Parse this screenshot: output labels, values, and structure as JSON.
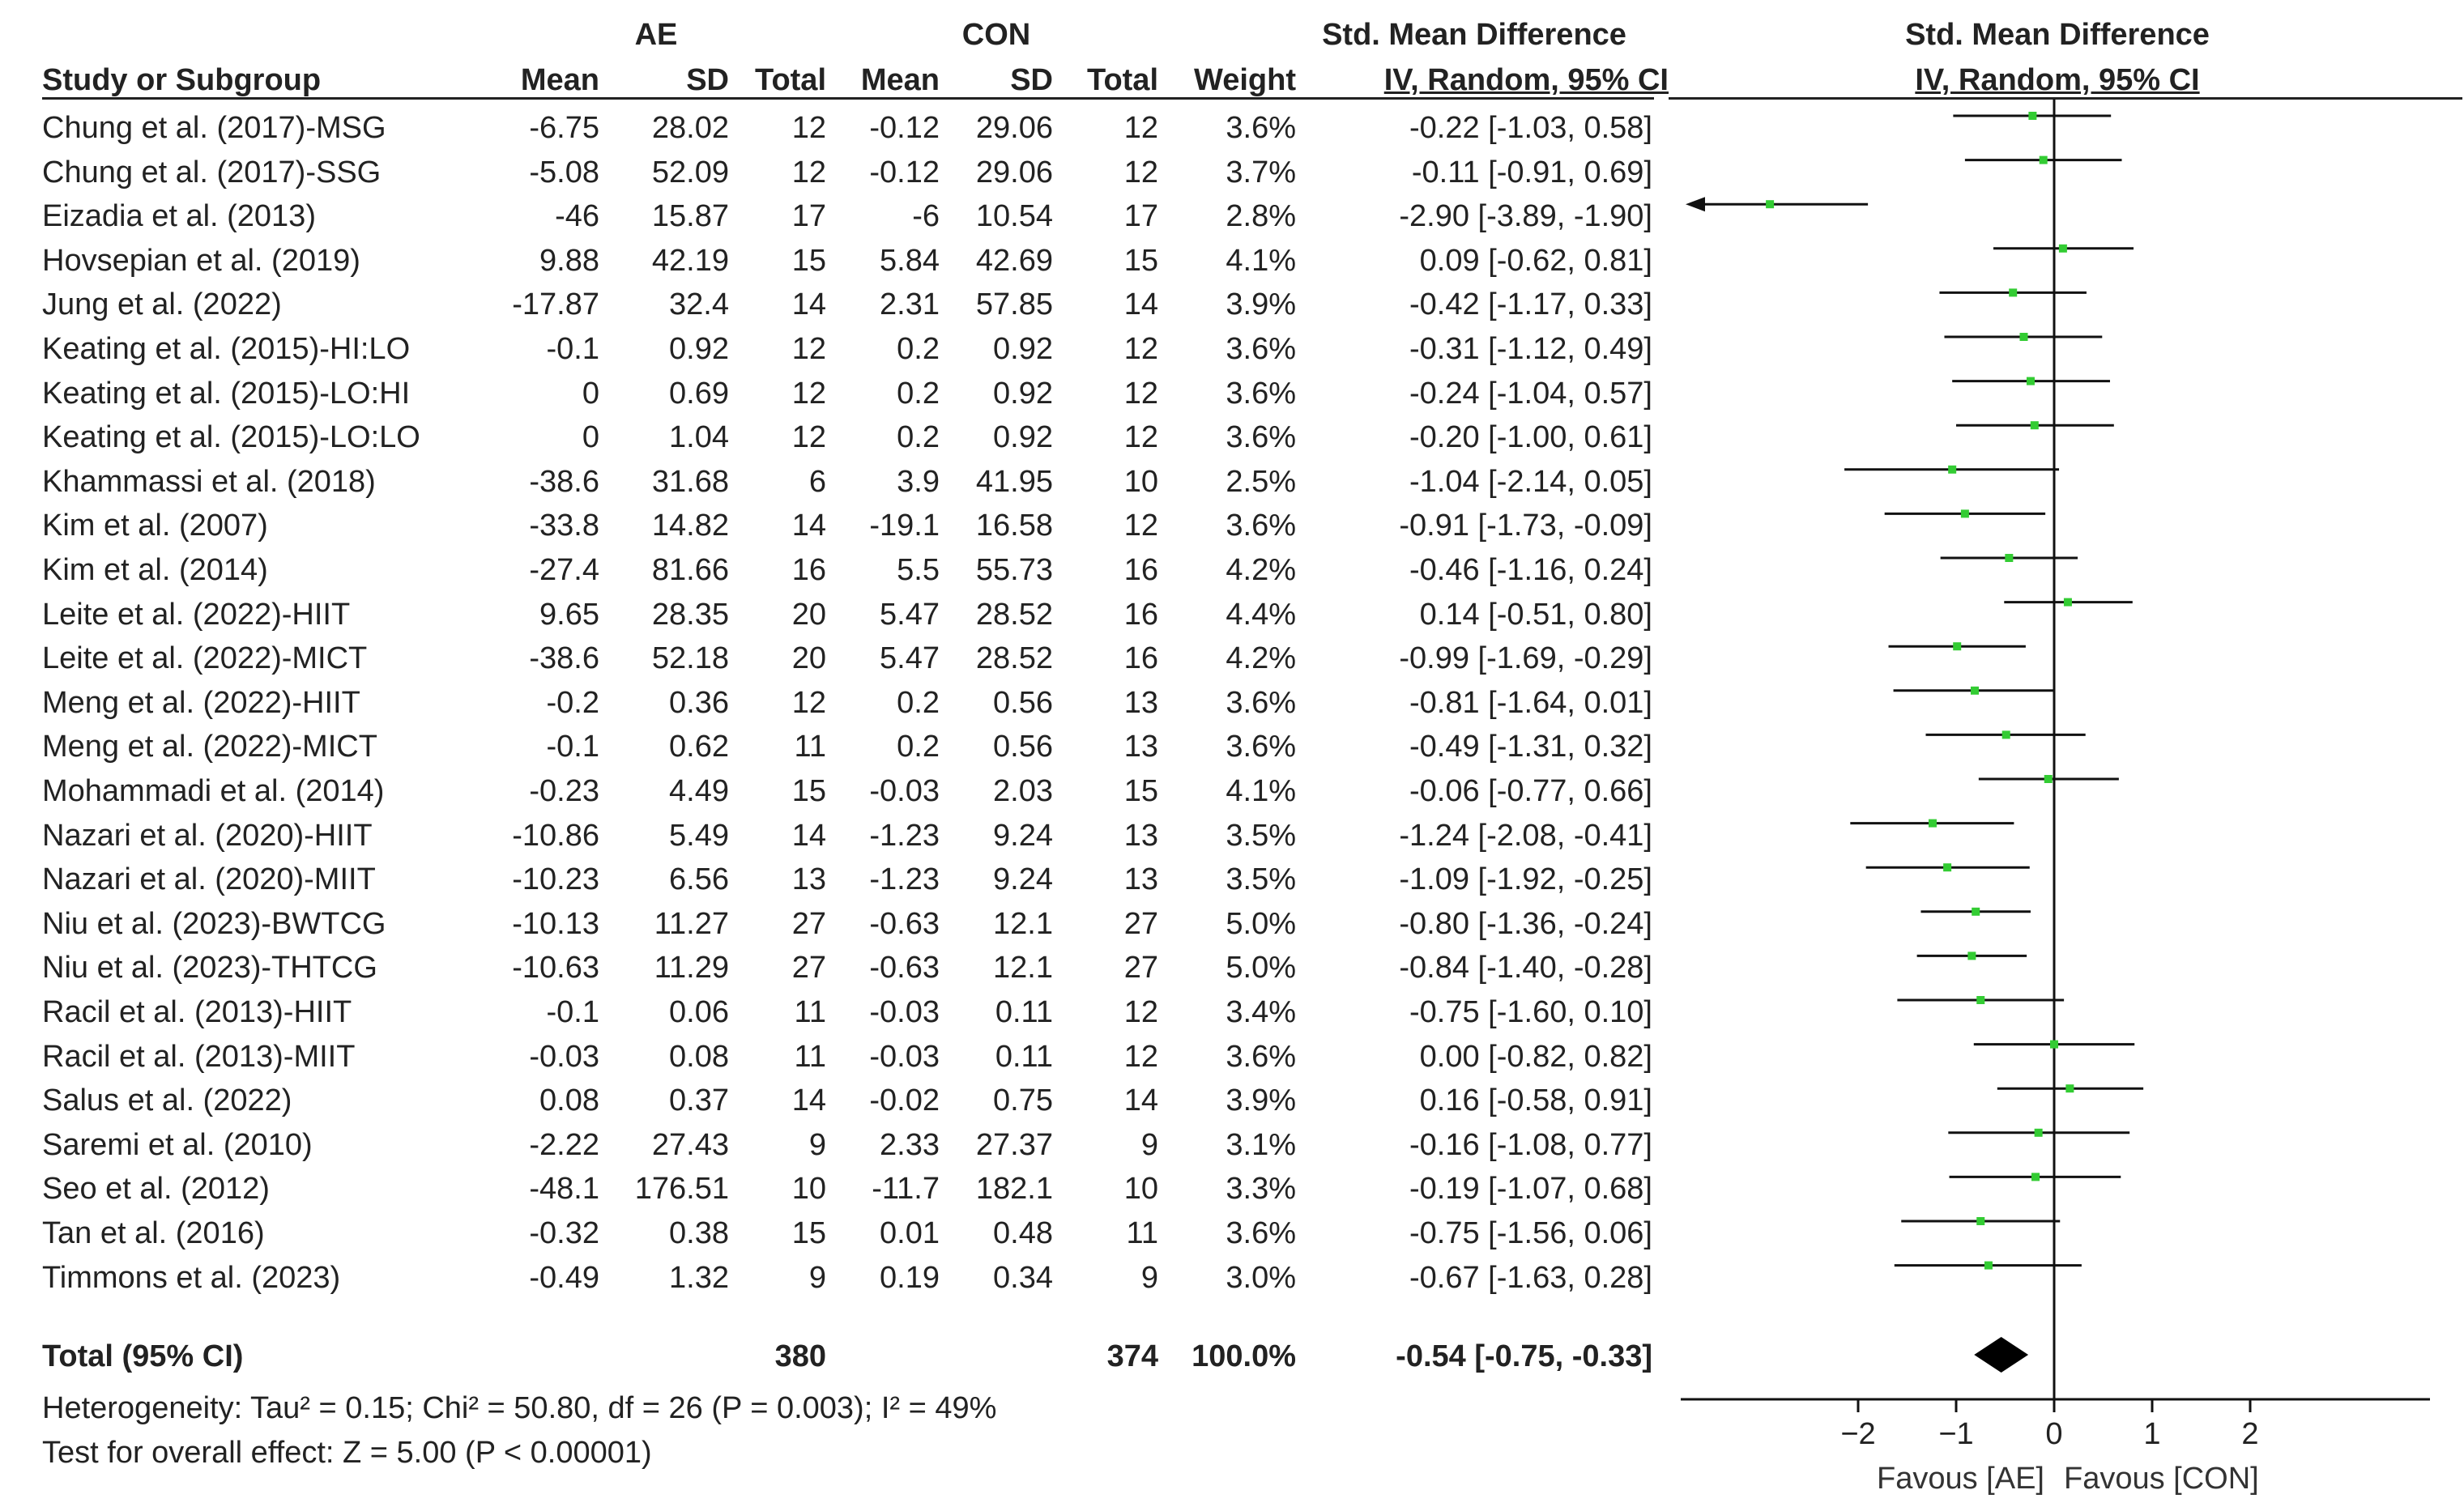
{
  "headers": {
    "group_ae": "AE",
    "group_con": "CON",
    "smd_title_table": "Std. Mean Difference",
    "smd_title_plot": "Std. Mean Difference",
    "study": "Study or Subgroup",
    "mean_ae": "Mean",
    "sd_ae": "SD",
    "total_ae": "Total",
    "mean_con": "Mean",
    "sd_con": "SD",
    "total_con": "Total",
    "weight": "Weight",
    "ci_table": "IV, Random, 95% CI",
    "ci_plot": "IV, Random, 95% CI"
  },
  "rows": [
    {
      "study": "Chung et al. (2017)-MSG",
      "ae_mean": "-6.75",
      "ae_sd": "28.02",
      "ae_total": "12",
      "con_mean": "-0.12",
      "con_sd": "29.06",
      "con_total": "12",
      "weight": "3.6%",
      "ci_text": "-0.22 [-1.03, 0.58]"
    },
    {
      "study": "Chung et al. (2017)-SSG",
      "ae_mean": "-5.08",
      "ae_sd": "52.09",
      "ae_total": "12",
      "con_mean": "-0.12",
      "con_sd": "29.06",
      "con_total": "12",
      "weight": "3.7%",
      "ci_text": "-0.11 [-0.91, 0.69]"
    },
    {
      "study": "Eizadia et al. (2013)",
      "ae_mean": "-46",
      "ae_sd": "15.87",
      "ae_total": "17",
      "con_mean": "-6",
      "con_sd": "10.54",
      "con_total": "17",
      "weight": "2.8%",
      "ci_text": "-2.90 [-3.89, -1.90]"
    },
    {
      "study": "Hovsepian et al. (2019)",
      "ae_mean": "9.88",
      "ae_sd": "42.19",
      "ae_total": "15",
      "con_mean": "5.84",
      "con_sd": "42.69",
      "con_total": "15",
      "weight": "4.1%",
      "ci_text": "0.09 [-0.62, 0.81]"
    },
    {
      "study": "Jung et al. (2022)",
      "ae_mean": "-17.87",
      "ae_sd": "32.4",
      "ae_total": "14",
      "con_mean": "2.31",
      "con_sd": "57.85",
      "con_total": "14",
      "weight": "3.9%",
      "ci_text": "-0.42 [-1.17, 0.33]"
    },
    {
      "study": "Keating et al. (2015)-HI:LO",
      "ae_mean": "-0.1",
      "ae_sd": "0.92",
      "ae_total": "12",
      "con_mean": "0.2",
      "con_sd": "0.92",
      "con_total": "12",
      "weight": "3.6%",
      "ci_text": "-0.31 [-1.12, 0.49]"
    },
    {
      "study": "Keating et al. (2015)-LO:HI",
      "ae_mean": "0",
      "ae_sd": "0.69",
      "ae_total": "12",
      "con_mean": "0.2",
      "con_sd": "0.92",
      "con_total": "12",
      "weight": "3.6%",
      "ci_text": "-0.24 [-1.04, 0.57]"
    },
    {
      "study": "Keating et al. (2015)-LO:LO",
      "ae_mean": "0",
      "ae_sd": "1.04",
      "ae_total": "12",
      "con_mean": "0.2",
      "con_sd": "0.92",
      "con_total": "12",
      "weight": "3.6%",
      "ci_text": "-0.20 [-1.00, 0.61]"
    },
    {
      "study": "Khammassi et al. (2018)",
      "ae_mean": "-38.6",
      "ae_sd": "31.68",
      "ae_total": "6",
      "con_mean": "3.9",
      "con_sd": "41.95",
      "con_total": "10",
      "weight": "2.5%",
      "ci_text": "-1.04 [-2.14, 0.05]"
    },
    {
      "study": "Kim et al. (2007)",
      "ae_mean": "-33.8",
      "ae_sd": "14.82",
      "ae_total": "14",
      "con_mean": "-19.1",
      "con_sd": "16.58",
      "con_total": "12",
      "weight": "3.6%",
      "ci_text": "-0.91 [-1.73, -0.09]"
    },
    {
      "study": "Kim et al. (2014)",
      "ae_mean": "-27.4",
      "ae_sd": "81.66",
      "ae_total": "16",
      "con_mean": "5.5",
      "con_sd": "55.73",
      "con_total": "16",
      "weight": "4.2%",
      "ci_text": "-0.46 [-1.16, 0.24]"
    },
    {
      "study": "Leite et al. (2022)-HIIT",
      "ae_mean": "9.65",
      "ae_sd": "28.35",
      "ae_total": "20",
      "con_mean": "5.47",
      "con_sd": "28.52",
      "con_total": "16",
      "weight": "4.4%",
      "ci_text": "0.14 [-0.51, 0.80]"
    },
    {
      "study": "Leite et al. (2022)-MICT",
      "ae_mean": "-38.6",
      "ae_sd": "52.18",
      "ae_total": "20",
      "con_mean": "5.47",
      "con_sd": "28.52",
      "con_total": "16",
      "weight": "4.2%",
      "ci_text": "-0.99 [-1.69, -0.29]"
    },
    {
      "study": "Meng et al. (2022)-HIIT",
      "ae_mean": "-0.2",
      "ae_sd": "0.36",
      "ae_total": "12",
      "con_mean": "0.2",
      "con_sd": "0.56",
      "con_total": "13",
      "weight": "3.6%",
      "ci_text": "-0.81 [-1.64, 0.01]"
    },
    {
      "study": "Meng et al. (2022)-MICT",
      "ae_mean": "-0.1",
      "ae_sd": "0.62",
      "ae_total": "11",
      "con_mean": "0.2",
      "con_sd": "0.56",
      "con_total": "13",
      "weight": "3.6%",
      "ci_text": "-0.49 [-1.31, 0.32]"
    },
    {
      "study": "Mohammadi et al. (2014)",
      "ae_mean": "-0.23",
      "ae_sd": "4.49",
      "ae_total": "15",
      "con_mean": "-0.03",
      "con_sd": "2.03",
      "con_total": "15",
      "weight": "4.1%",
      "ci_text": "-0.06 [-0.77, 0.66]"
    },
    {
      "study": "Nazari et al. (2020)-HIIT",
      "ae_mean": "-10.86",
      "ae_sd": "5.49",
      "ae_total": "14",
      "con_mean": "-1.23",
      "con_sd": "9.24",
      "con_total": "13",
      "weight": "3.5%",
      "ci_text": "-1.24 [-2.08, -0.41]"
    },
    {
      "study": "Nazari et al. (2020)-MIIT",
      "ae_mean": "-10.23",
      "ae_sd": "6.56",
      "ae_total": "13",
      "con_mean": "-1.23",
      "con_sd": "9.24",
      "con_total": "13",
      "weight": "3.5%",
      "ci_text": "-1.09 [-1.92, -0.25]"
    },
    {
      "study": "Niu et al. (2023)-BWTCG",
      "ae_mean": "-10.13",
      "ae_sd": "11.27",
      "ae_total": "27",
      "con_mean": "-0.63",
      "con_sd": "12.1",
      "con_total": "27",
      "weight": "5.0%",
      "ci_text": "-0.80 [-1.36, -0.24]"
    },
    {
      "study": "Niu et al. (2023)-THTCG",
      "ae_mean": "-10.63",
      "ae_sd": "11.29",
      "ae_total": "27",
      "con_mean": "-0.63",
      "con_sd": "12.1",
      "con_total": "27",
      "weight": "5.0%",
      "ci_text": "-0.84 [-1.40, -0.28]"
    },
    {
      "study": "Racil et al. (2013)-HIIT",
      "ae_mean": "-0.1",
      "ae_sd": "0.06",
      "ae_total": "11",
      "con_mean": "-0.03",
      "con_sd": "0.11",
      "con_total": "12",
      "weight": "3.4%",
      "ci_text": "-0.75 [-1.60, 0.10]"
    },
    {
      "study": "Racil et al. (2013)-MIIT",
      "ae_mean": "-0.03",
      "ae_sd": "0.08",
      "ae_total": "11",
      "con_mean": "-0.03",
      "con_sd": "0.11",
      "con_total": "12",
      "weight": "3.6%",
      "ci_text": "0.00 [-0.82, 0.82]"
    },
    {
      "study": "Salus et al. (2022)",
      "ae_mean": "0.08",
      "ae_sd": "0.37",
      "ae_total": "14",
      "con_mean": "-0.02",
      "con_sd": "0.75",
      "con_total": "14",
      "weight": "3.9%",
      "ci_text": "0.16 [-0.58, 0.91]"
    },
    {
      "study": "Saremi et al. (2010)",
      "ae_mean": "-2.22",
      "ae_sd": "27.43",
      "ae_total": "9",
      "con_mean": "2.33",
      "con_sd": "27.37",
      "con_total": "9",
      "weight": "3.1%",
      "ci_text": "-0.16 [-1.08, 0.77]"
    },
    {
      "study": "Seo et al. (2012)",
      "ae_mean": "-48.1",
      "ae_sd": "176.51",
      "ae_total": "10",
      "con_mean": "-11.7",
      "con_sd": "182.1",
      "con_total": "10",
      "weight": "3.3%",
      "ci_text": "-0.19 [-1.07, 0.68]"
    },
    {
      "study": "Tan et al. (2016)",
      "ae_mean": "-0.32",
      "ae_sd": "0.38",
      "ae_total": "15",
      "con_mean": "0.01",
      "con_sd": "0.48",
      "con_total": "11",
      "weight": "3.6%",
      "ci_text": "-0.75 [-1.56, 0.06]"
    },
    {
      "study": "Timmons et al. (2023)",
      "ae_mean": "-0.49",
      "ae_sd": "1.32",
      "ae_total": "9",
      "con_mean": "0.19",
      "con_sd": "0.34",
      "con_total": "9",
      "weight": "3.0%",
      "ci_text": "-0.67 [-1.63, 0.28]"
    }
  ],
  "total": {
    "label": "Total (95% CI)",
    "ae_total": "380",
    "con_total": "374",
    "weight": "100.0%",
    "ci_text": "-0.54 [-0.75, -0.33]"
  },
  "footer": {
    "heterogeneity": "Heterogeneity: Tau² = 0.15; Chi² = 50.80, df = 26 (P = 0.003); I² = 49%",
    "overall_test": "Test for overall effect: Z = 5.00 (P < 0.00001)"
  },
  "colors": {
    "point": "#33cc33",
    "line": "#111111",
    "text": "#222222",
    "diamond": "#000000"
  },
  "chart_data": {
    "type": "forest",
    "title": "Std. Mean Difference",
    "subtitle": "IV, Random, 95% CI",
    "xlim": [
      -4,
      4
    ],
    "xticks": [
      -2,
      -1,
      0,
      1,
      2
    ],
    "xtick_labels": [
      "-2",
      "-1",
      "0",
      "1",
      "2"
    ],
    "xlabel_left": "Favous [AE]",
    "xlabel_right": "Favous [CON]",
    "reference_line": 0,
    "studies": [
      {
        "name": "Chung et al. (2017)-MSG",
        "est": -0.22,
        "lo": -1.03,
        "hi": 0.58
      },
      {
        "name": "Chung et al. (2017)-SSG",
        "est": -0.11,
        "lo": -0.91,
        "hi": 0.69
      },
      {
        "name": "Eizadia et al. (2013)",
        "est": -2.9,
        "lo": -3.89,
        "hi": -1.9
      },
      {
        "name": "Hovsepian et al. (2019)",
        "est": 0.09,
        "lo": -0.62,
        "hi": 0.81
      },
      {
        "name": "Jung et al. (2022)",
        "est": -0.42,
        "lo": -1.17,
        "hi": 0.33
      },
      {
        "name": "Keating et al. (2015)-HI:LO",
        "est": -0.31,
        "lo": -1.12,
        "hi": 0.49
      },
      {
        "name": "Keating et al. (2015)-LO:HI",
        "est": -0.24,
        "lo": -1.04,
        "hi": 0.57
      },
      {
        "name": "Keating et al. (2015)-LO:LO",
        "est": -0.2,
        "lo": -1.0,
        "hi": 0.61
      },
      {
        "name": "Khammassi et al. (2018)",
        "est": -1.04,
        "lo": -2.14,
        "hi": 0.05
      },
      {
        "name": "Kim et al. (2007)",
        "est": -0.91,
        "lo": -1.73,
        "hi": -0.09
      },
      {
        "name": "Kim et al. (2014)",
        "est": -0.46,
        "lo": -1.16,
        "hi": 0.24
      },
      {
        "name": "Leite et al. (2022)-HIIT",
        "est": 0.14,
        "lo": -0.51,
        "hi": 0.8
      },
      {
        "name": "Leite et al. (2022)-MICT",
        "est": -0.99,
        "lo": -1.69,
        "hi": -0.29
      },
      {
        "name": "Meng et al. (2022)-HIIT",
        "est": -0.81,
        "lo": -1.64,
        "hi": 0.01
      },
      {
        "name": "Meng et al. (2022)-MICT",
        "est": -0.49,
        "lo": -1.31,
        "hi": 0.32
      },
      {
        "name": "Mohammadi et al. (2014)",
        "est": -0.06,
        "lo": -0.77,
        "hi": 0.66
      },
      {
        "name": "Nazari et al. (2020)-HIIT",
        "est": -1.24,
        "lo": -2.08,
        "hi": -0.41
      },
      {
        "name": "Nazari et al. (2020)-MIIT",
        "est": -1.09,
        "lo": -1.92,
        "hi": -0.25
      },
      {
        "name": "Niu et al. (2023)-BWTCG",
        "est": -0.8,
        "lo": -1.36,
        "hi": -0.24
      },
      {
        "name": "Niu et al. (2023)-THTCG",
        "est": -0.84,
        "lo": -1.4,
        "hi": -0.28
      },
      {
        "name": "Racil et al. (2013)-HIIT",
        "est": -0.75,
        "lo": -1.6,
        "hi": 0.1
      },
      {
        "name": "Racil et al. (2013)-MIIT",
        "est": 0.0,
        "lo": -0.82,
        "hi": 0.82
      },
      {
        "name": "Salus et al. (2022)",
        "est": 0.16,
        "lo": -0.58,
        "hi": 0.91
      },
      {
        "name": "Saremi et al. (2010)",
        "est": -0.16,
        "lo": -1.08,
        "hi": 0.77
      },
      {
        "name": "Seo et al. (2012)",
        "est": -0.19,
        "lo": -1.07,
        "hi": 0.68
      },
      {
        "name": "Tan et al. (2016)",
        "est": -0.75,
        "lo": -1.56,
        "hi": 0.06
      },
      {
        "name": "Timmons et al. (2023)",
        "est": -0.67,
        "lo": -1.63,
        "hi": 0.28
      }
    ],
    "pooled": {
      "est": -0.54,
      "lo": -0.75,
      "hi": -0.33
    }
  }
}
